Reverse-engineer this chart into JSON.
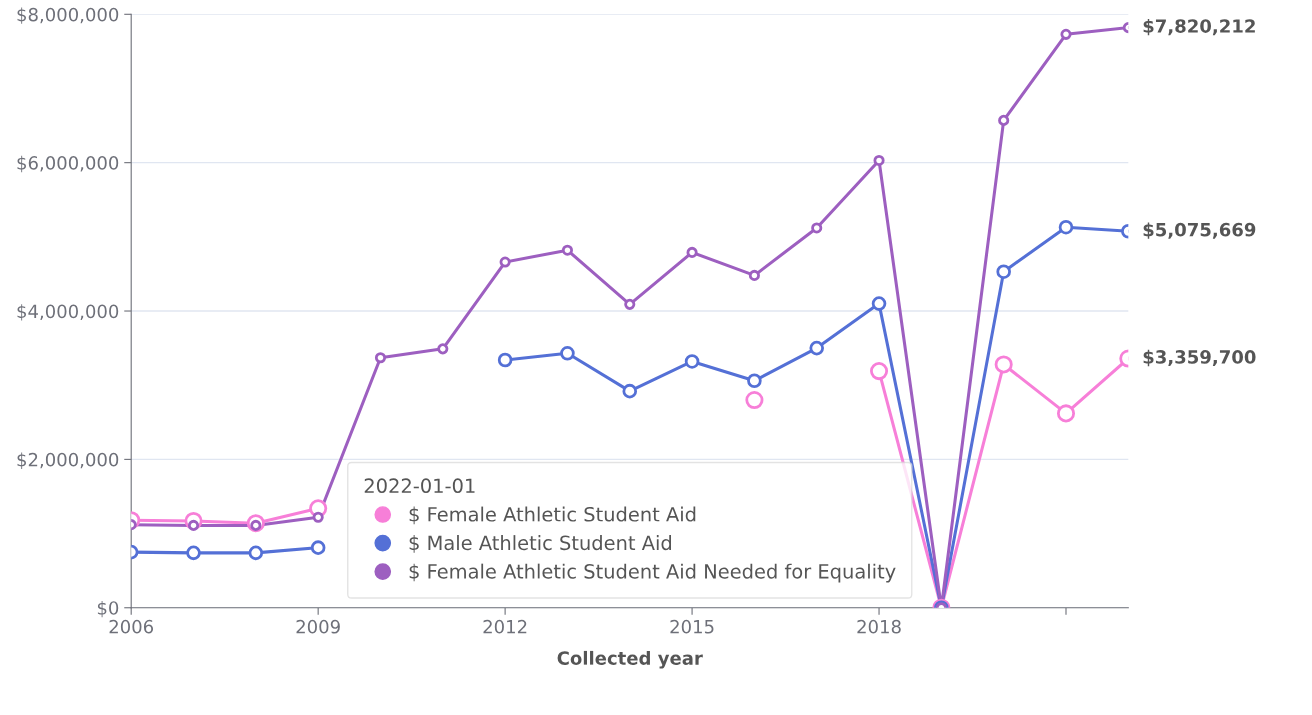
{
  "chart_data": {
    "type": "line",
    "xlabel": "Collected year",
    "legend_title": "2022-01-01",
    "x": [
      2006,
      2007,
      2008,
      2009,
      2010,
      2011,
      2012,
      2013,
      2014,
      2015,
      2016,
      2017,
      2018,
      2019,
      2020,
      2021,
      2022
    ],
    "series": [
      {
        "name": "$ Female Athletic Student Aid",
        "color": "#f77fd8",
        "values": [
          1180000.0,
          1170000.0,
          1140000.0,
          1340000.0,
          null,
          null,
          null,
          null,
          null,
          null,
          2800000.0,
          null,
          3190000.0,
          0,
          3280000.0,
          2620000.0,
          3359700
        ],
        "value_labels": [
          null,
          null,
          null,
          null,
          null,
          null,
          null,
          null,
          null,
          null,
          null,
          null,
          null,
          null,
          null,
          null,
          "$3,359,700"
        ]
      },
      {
        "name": "$ Male Athletic Student Aid",
        "color": "#5470d6",
        "values": [
          750000.0,
          740000.0,
          740000.0,
          810000.0,
          null,
          null,
          3340000.0,
          3430000.0,
          2920000.0,
          3320000.0,
          3060000.0,
          3500000.0,
          4100000.0,
          0,
          4530000.0,
          5130000.0,
          5075669
        ],
        "value_labels": [
          null,
          null,
          null,
          null,
          null,
          null,
          null,
          null,
          null,
          null,
          null,
          null,
          null,
          null,
          null,
          null,
          "$5,075,669"
        ]
      },
      {
        "name": "$ Female Athletic Student Aid Needed for Equality",
        "color": "#9d5fc0",
        "values": [
          1120000.0,
          1110000.0,
          1110000.0,
          1220000.0,
          3370000.0,
          3490000.0,
          4660000.0,
          4820000.0,
          4090000.0,
          4790000.0,
          4480000.0,
          5120000.0,
          6030000.0,
          0,
          6570000.0,
          7730000.0,
          7820212
        ],
        "value_labels": [
          null,
          null,
          null,
          null,
          null,
          null,
          null,
          null,
          null,
          null,
          null,
          null,
          null,
          null,
          null,
          null,
          "$7,820,212"
        ]
      }
    ],
    "xlim": [
      2006,
      2022
    ],
    "xticks": [
      2006,
      2009,
      2012,
      2015,
      2018,
      {
        "value": 2021,
        "label": null
      }
    ],
    "ylim": [
      0,
      8000000
    ],
    "yticks": [
      {
        "value": 0,
        "label": "$0"
      },
      {
        "value": 2000000,
        "label": "$2,000,000"
      },
      {
        "value": 4000000,
        "label": "$4,000,000"
      },
      {
        "value": 6000000,
        "label": "$6,000,000"
      },
      {
        "value": 8000000,
        "label": "$8,000,000"
      }
    ],
    "grid": "y",
    "legend": "bottom",
    "marker": "circle",
    "line_style": "solid"
  }
}
